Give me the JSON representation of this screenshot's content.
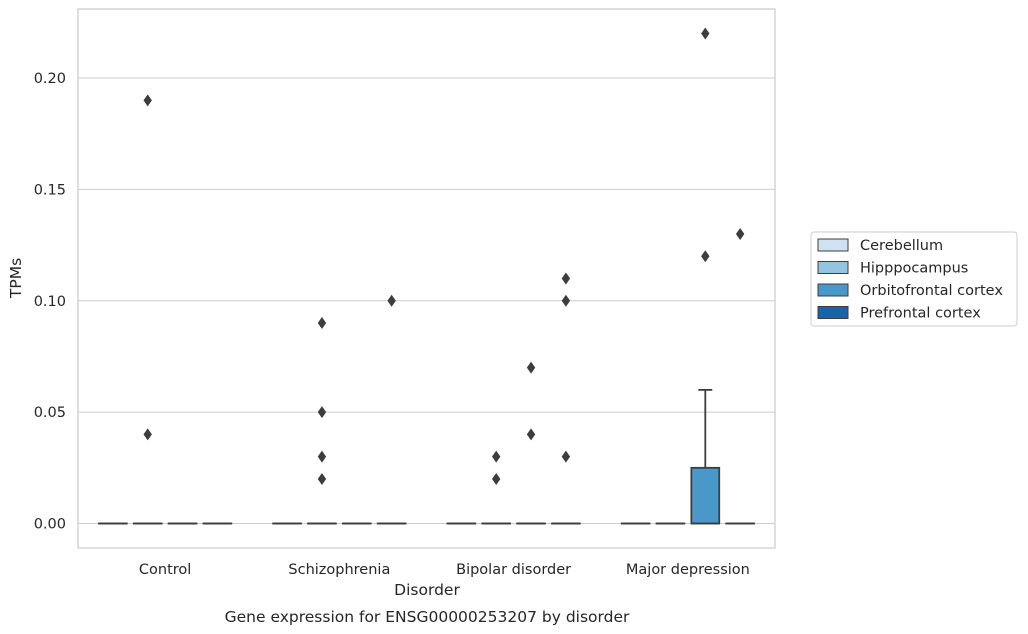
{
  "chart_data": {
    "type": "box",
    "xlabel": "Disorder",
    "ylabel": "TPMs",
    "caption": "Gene expression for ENSG00000253207 by disorder",
    "categories": [
      "Control",
      "Schizophrenia",
      "Bipolar disorder",
      "Major depression"
    ],
    "ylim": [
      -0.011,
      0.231
    ],
    "yticks": [
      0.0,
      0.05,
      0.1,
      0.15,
      0.2
    ],
    "ytick_labels": [
      "0.00",
      "0.05",
      "0.10",
      "0.15",
      "0.20"
    ],
    "grid": "horizontal",
    "legend_position": "right",
    "series": [
      {
        "name": "Cerebellum",
        "color": "#d0e1f2",
        "boxes": [
          {
            "q1": 0,
            "median": 0,
            "q3": 0,
            "whisker_low": 0,
            "whisker_high": 0,
            "outliers": []
          },
          {
            "q1": 0,
            "median": 0,
            "q3": 0,
            "whisker_low": 0,
            "whisker_high": 0,
            "outliers": []
          },
          {
            "q1": 0,
            "median": 0,
            "q3": 0,
            "whisker_low": 0,
            "whisker_high": 0,
            "outliers": []
          },
          {
            "q1": 0,
            "median": 0,
            "q3": 0,
            "whisker_low": 0,
            "whisker_high": 0,
            "outliers": []
          }
        ]
      },
      {
        "name": "Hipppocampus",
        "color": "#94c4df",
        "boxes": [
          {
            "q1": 0,
            "median": 0,
            "q3": 0,
            "whisker_low": 0,
            "whisker_high": 0,
            "outliers": [
              0.19,
              0.04
            ]
          },
          {
            "q1": 0,
            "median": 0,
            "q3": 0,
            "whisker_low": 0,
            "whisker_high": 0,
            "outliers": [
              0.09,
              0.05,
              0.03,
              0.02
            ]
          },
          {
            "q1": 0,
            "median": 0,
            "q3": 0,
            "whisker_low": 0,
            "whisker_high": 0,
            "outliers": [
              0.02,
              0.03
            ]
          },
          {
            "q1": 0,
            "median": 0,
            "q3": 0,
            "whisker_low": 0,
            "whisker_high": 0,
            "outliers": []
          }
        ]
      },
      {
        "name": "Orbitofrontal cortex",
        "color": "#4a98c9",
        "boxes": [
          {
            "q1": 0,
            "median": 0,
            "q3": 0,
            "whisker_low": 0,
            "whisker_high": 0,
            "outliers": []
          },
          {
            "q1": 0,
            "median": 0,
            "q3": 0,
            "whisker_low": 0,
            "whisker_high": 0,
            "outliers": []
          },
          {
            "q1": 0,
            "median": 0,
            "q3": 0,
            "whisker_low": 0,
            "whisker_high": 0,
            "outliers": [
              0.07,
              0.04
            ]
          },
          {
            "q1": 0,
            "median": 0,
            "q3": 0.025,
            "whisker_low": 0,
            "whisker_high": 0.06,
            "outliers": [
              0.22,
              0.12
            ]
          }
        ]
      },
      {
        "name": "Prefrontal cortex",
        "color": "#1764ab",
        "boxes": [
          {
            "q1": 0,
            "median": 0,
            "q3": 0,
            "whisker_low": 0,
            "whisker_high": 0,
            "outliers": []
          },
          {
            "q1": 0,
            "median": 0,
            "q3": 0,
            "whisker_low": 0,
            "whisker_high": 0,
            "outliers": [
              0.1
            ]
          },
          {
            "q1": 0,
            "median": 0,
            "q3": 0,
            "whisker_low": 0,
            "whisker_high": 0,
            "outliers": [
              0.11,
              0.1,
              0.03
            ]
          },
          {
            "q1": 0,
            "median": 0,
            "q3": 0,
            "whisker_low": 0,
            "whisker_high": 0,
            "outliers": [
              0.13
            ]
          }
        ]
      }
    ]
  }
}
